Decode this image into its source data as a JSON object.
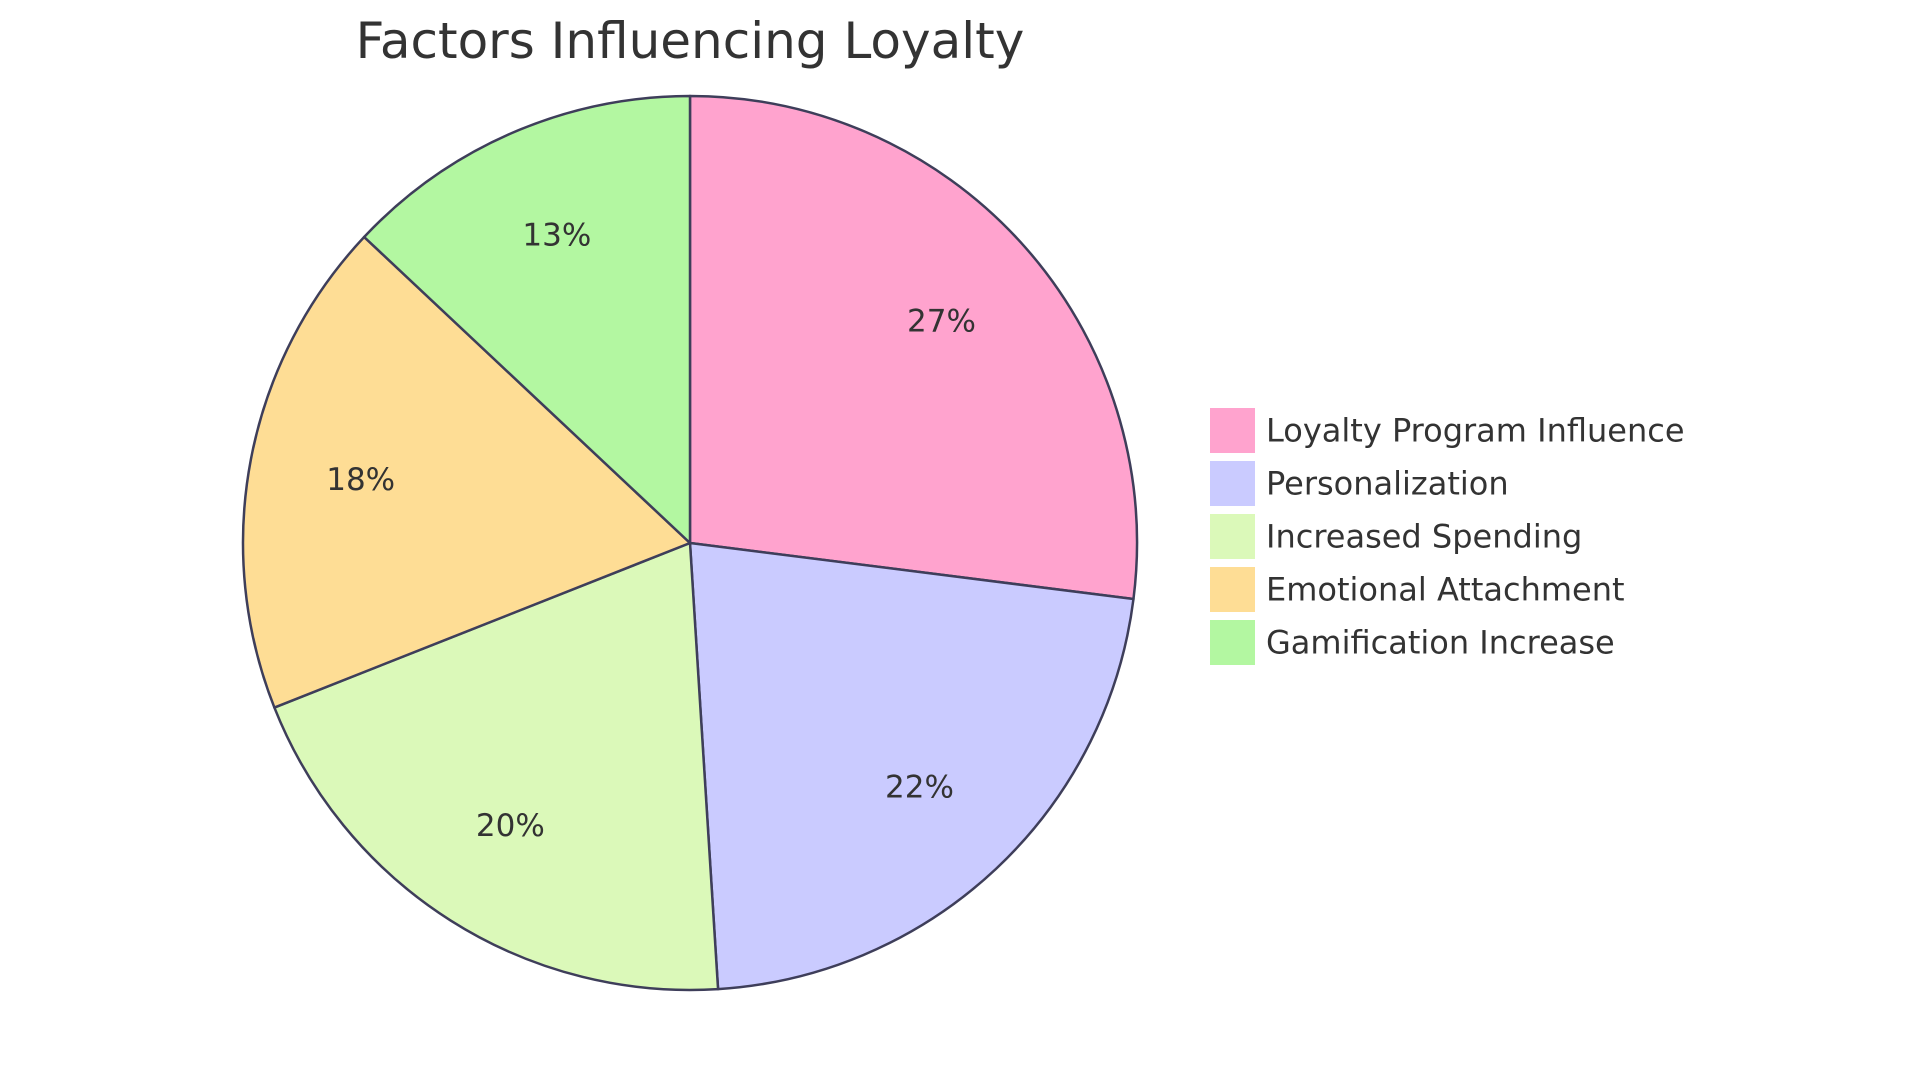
{
  "chart_data": {
    "type": "pie",
    "title": "Factors Influencing Loyalty",
    "legend_position": "right",
    "slices": [
      {
        "name": "Loyalty Program Influence",
        "value": 27,
        "label": "27%",
        "color": "#FFA3CE"
      },
      {
        "name": "Personalization",
        "value": 22,
        "label": "22%",
        "color": "#CACBFF"
      },
      {
        "name": "Increased Spending",
        "value": 20,
        "label": "20%",
        "color": "#DBF9B9"
      },
      {
        "name": "Emotional Attachment",
        "value": 18,
        "label": "18%",
        "color": "#FEDD95"
      },
      {
        "name": "Gamification Increase",
        "value": 13,
        "label": "13%",
        "color": "#B3F7A1"
      }
    ],
    "stroke_color": "#3E3E5A"
  }
}
